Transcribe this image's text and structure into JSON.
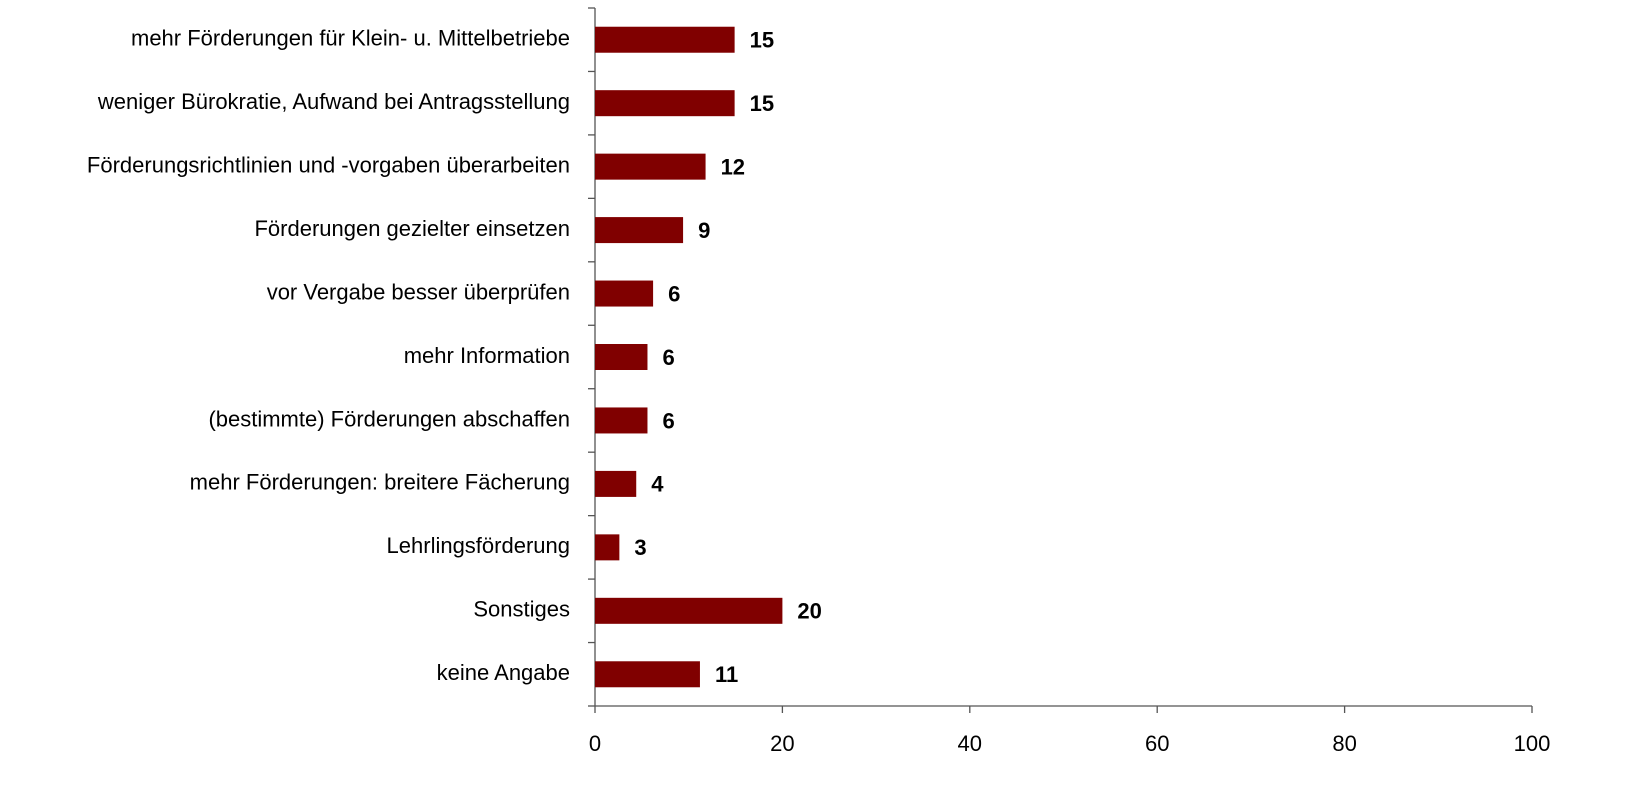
{
  "chart_data": {
    "type": "bar",
    "orientation": "horizontal",
    "categories": [
      "mehr Förderungen für Klein- u. Mittelbetriebe",
      "weniger Bürokratie, Aufwand bei Antragsstellung",
      "Förderungsrichtlinien und -vorgaben überarbeiten",
      "Förderungen gezielter einsetzen",
      "vor Vergabe besser überprüfen",
      "mehr Information",
      "(bestimmte) Förderungen abschaffen",
      "mehr Förderungen: breitere Fächerung",
      "Lehrlingsförderung",
      "Sonstiges",
      "keine Angabe"
    ],
    "values": [
      14.9,
      14.9,
      11.8,
      9.4,
      6.2,
      5.6,
      5.6,
      4.4,
      2.6,
      20,
      11.2
    ],
    "value_labels": [
      "15",
      "15",
      "12",
      "9",
      "6",
      "6",
      "6",
      "4",
      "3",
      "20",
      "11"
    ],
    "color": "#800000",
    "xlim": [
      0,
      100
    ],
    "xticks": [
      0,
      20,
      40,
      60,
      80,
      100
    ],
    "grid": false
  }
}
